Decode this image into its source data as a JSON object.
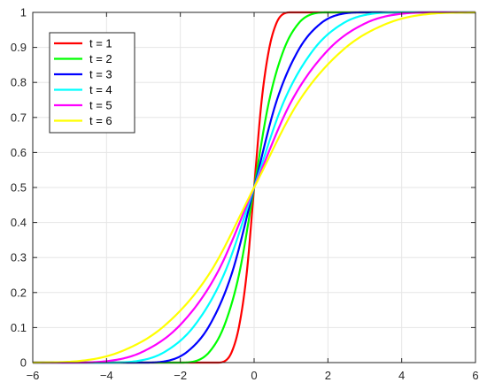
{
  "chart_data": {
    "type": "line",
    "title": "",
    "xlabel": "",
    "ylabel": "",
    "xlim": [
      -6,
      6
    ],
    "ylim": [
      0,
      1
    ],
    "xticks": [
      "-6",
      "-4",
      "-2",
      "0",
      "2",
      "4",
      "6"
    ],
    "yticks": [
      "0",
      "0.1",
      "0.2",
      "0.3",
      "0.4",
      "0.5",
      "0.6",
      "0.7",
      "0.8",
      "0.9",
      "1"
    ],
    "grid": true,
    "legend_position": "top-left",
    "series": [
      {
        "name": "t = 1",
        "color": "#ff0000",
        "x": [
          -6,
          -1,
          -0.8,
          -0.6,
          -0.4,
          -0.2,
          0,
          0.2,
          0.4,
          0.6,
          0.8,
          1,
          6
        ],
        "y": [
          0,
          0,
          0.004,
          0.032,
          0.108,
          0.256,
          0.5,
          0.744,
          0.892,
          0.968,
          0.996,
          1,
          1
        ]
      },
      {
        "name": "t = 2",
        "color": "#00ff00",
        "x": [
          -6,
          -2,
          -1.6,
          -1.2,
          -0.8,
          -0.4,
          0,
          0.4,
          0.8,
          1.2,
          1.6,
          2,
          6
        ],
        "y": [
          0,
          0,
          0.004,
          0.032,
          0.108,
          0.256,
          0.5,
          0.744,
          0.892,
          0.968,
          0.996,
          1,
          1
        ]
      },
      {
        "name": "t = 3",
        "color": "#0000ff",
        "x": [
          -6,
          -3,
          -2.4,
          -1.8,
          -1.2,
          -0.6,
          0,
          0.6,
          1.2,
          1.8,
          2.4,
          3,
          6
        ],
        "y": [
          0,
          0,
          0.004,
          0.032,
          0.108,
          0.256,
          0.5,
          0.744,
          0.892,
          0.968,
          0.996,
          1,
          1
        ]
      },
      {
        "name": "t = 4",
        "color": "#00ffff",
        "x": [
          -6,
          -4,
          -3.2,
          -2.4,
          -1.6,
          -0.8,
          0,
          0.8,
          1.6,
          2.4,
          3.2,
          4,
          6
        ],
        "y": [
          0,
          0,
          0.004,
          0.032,
          0.108,
          0.256,
          0.5,
          0.744,
          0.892,
          0.968,
          0.996,
          1,
          1
        ]
      },
      {
        "name": "t = 5",
        "color": "#ff00ff",
        "x": [
          -6,
          -5,
          -4,
          -3,
          -2,
          -1,
          0,
          1,
          2,
          3,
          4,
          5,
          6
        ],
        "y": [
          0,
          0,
          0.004,
          0.032,
          0.108,
          0.256,
          0.5,
          0.744,
          0.892,
          0.968,
          0.996,
          1,
          1
        ]
      },
      {
        "name": "t = 6",
        "color": "#ffff00",
        "x": [
          -6,
          -4.8,
          -3.6,
          -2.4,
          -1.2,
          0,
          1.2,
          2.4,
          3.6,
          4.8,
          6
        ],
        "y": [
          0,
          0.004,
          0.032,
          0.108,
          0.256,
          0.5,
          0.744,
          0.892,
          0.968,
          0.996,
          1
        ]
      }
    ]
  }
}
